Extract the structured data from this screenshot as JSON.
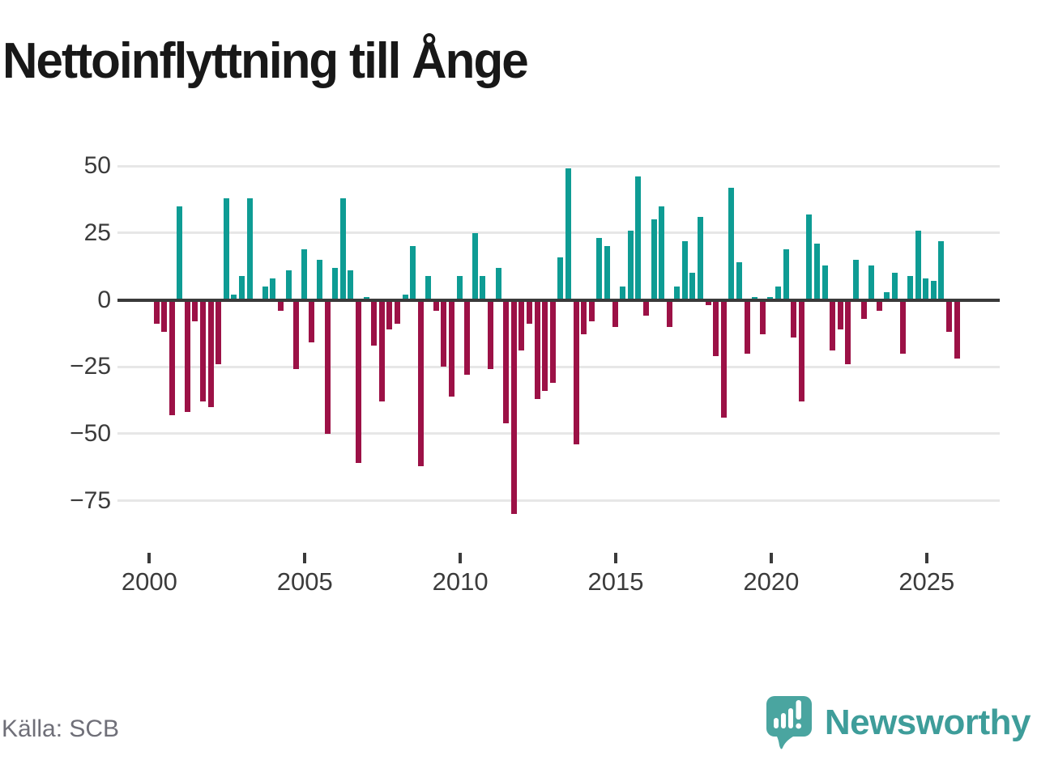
{
  "header": {
    "title": "Nettoinflyttning till Ånge"
  },
  "footer": {
    "source": "Källa: SCB",
    "brand_name": "Newsworthy"
  },
  "chart_data": {
    "type": "bar",
    "title": "Nettoinflyttning till Ånge",
    "frequency": "quarterly",
    "x_start": "2000-Q1",
    "x_end": "2025-Q4",
    "values": [
      -9,
      -12,
      -43,
      35,
      -42,
      -8,
      -38,
      -40,
      -24,
      38,
      2,
      9,
      38,
      0,
      5,
      8,
      -4,
      11,
      -26,
      19,
      -16,
      15,
      -50,
      12,
      38,
      11,
      -61,
      1,
      -17,
      -38,
      -11,
      -9,
      2,
      20,
      -62,
      9,
      -4,
      -25,
      -36,
      9,
      -28,
      25,
      9,
      -26,
      12,
      -46,
      -80,
      -19,
      -9,
      -37,
      -34,
      -31,
      16,
      49,
      -54,
      -13,
      -8,
      23,
      20,
      -10,
      5,
      26,
      46,
      -6,
      30,
      35,
      -10,
      5,
      22,
      10,
      31,
      -2,
      -21,
      -44,
      42,
      14,
      -20,
      1,
      -13,
      1,
      5,
      19,
      -14,
      -38,
      32,
      21,
      13,
      -19,
      -11,
      -24,
      15,
      -7,
      13,
      -4,
      3,
      10,
      -20,
      9,
      26,
      8,
      7,
      22,
      -12,
      -22
    ],
    "ytick_values": [
      50,
      25,
      0,
      -25,
      -50,
      -75
    ],
    "ytick_labels": [
      "50",
      "25",
      "0",
      "−25",
      "−50",
      "−75"
    ],
    "xtick_years": [
      2000,
      2005,
      2010,
      2015,
      2020,
      2025
    ],
    "ylim": [
      -80,
      49
    ],
    "grid": true,
    "legend": false,
    "positive_color": "#0e9c94",
    "negative_color": "#9c1146",
    "brand_color": "#3e9d9a",
    "logo_color": "#4aa5a0"
  }
}
